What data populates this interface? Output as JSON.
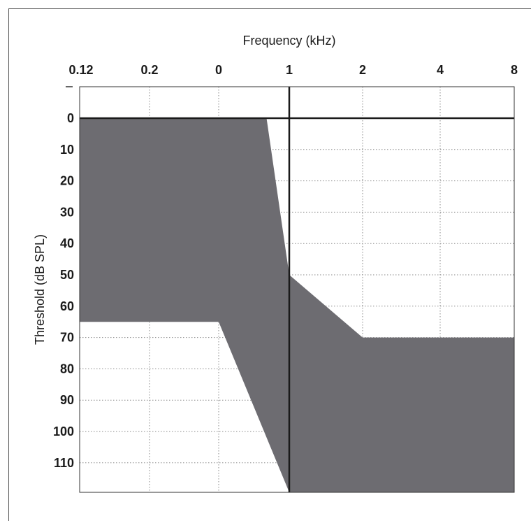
{
  "chart_data": {
    "type": "area",
    "title": "",
    "xlabel": "Frequency (kHz)",
    "ylabel": "Threshold (dB SPL)",
    "x_tick_labels": [
      "0.12",
      "0.2",
      "0",
      "1",
      "2",
      "4",
      "8"
    ],
    "y_tick_labels": [
      "0",
      "10",
      "20",
      "30",
      "40",
      "50",
      "60",
      "70",
      "80",
      "90",
      "100",
      "110"
    ],
    "ylim": [
      -10,
      120
    ],
    "grid": true,
    "fill_color": "#6d6c71",
    "series": [
      {
        "values": [
          {
            "x": 0.12,
            "y": 0
          },
          {
            "x": 0.8,
            "y": 0
          },
          {
            "x": 1,
            "y": 50
          },
          {
            "x": 2,
            "y": 70
          },
          {
            "x": 8,
            "y": 70
          },
          {
            "x": 8,
            "y": 120
          },
          {
            "x": 1,
            "y": 120
          },
          {
            "x": 0.5,
            "y": 65
          },
          {
            "x": 0.12,
            "y": 65
          }
        ]
      }
    ]
  }
}
